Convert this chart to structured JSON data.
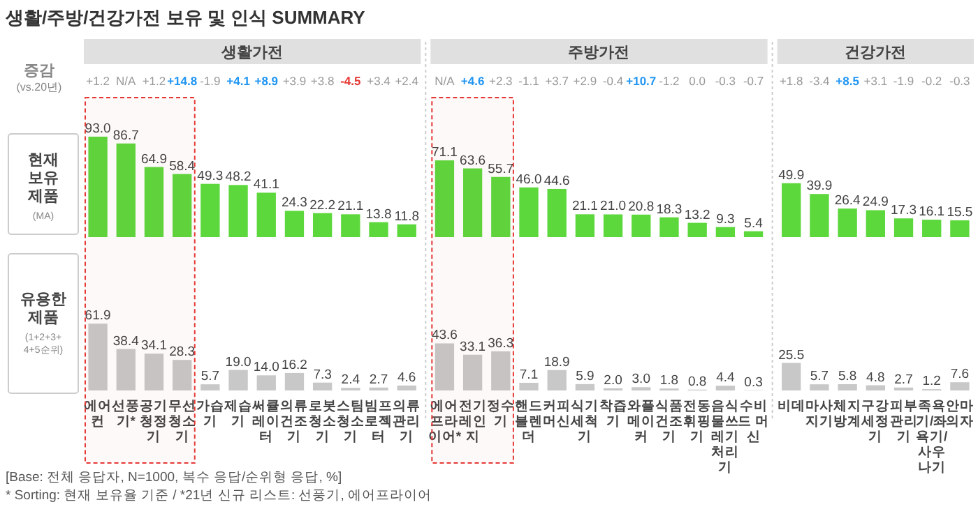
{
  "chart_data": [
    {
      "type": "bar",
      "title": "생활/주방/건강가전 보유 및 인식 SUMMARY",
      "ylabel": "현재\n보유\n제품\n(MA)",
      "color": "#5cd83c",
      "values": [
        93.0,
        86.7,
        64.9,
        58.4,
        49.3,
        48.2,
        41.1,
        24.3,
        22.2,
        21.1,
        13.8,
        11.8,
        71.1,
        63.6,
        55.7,
        46.0,
        44.6,
        21.1,
        21.0,
        20.8,
        18.3,
        13.2,
        9.3,
        5.4,
        49.9,
        39.9,
        26.4,
        24.9,
        17.3,
        16.1,
        15.5
      ],
      "value_labels": [
        "93.0",
        "86.7",
        "64.9",
        "58.4",
        "49.3",
        "48.2",
        "41.1",
        "24.3",
        "22.2",
        "21.1",
        "13.8",
        "11.8",
        "71.1",
        "63.6",
        "55.7",
        "46.0",
        "44.6",
        "21.1",
        "21.0",
        "20.8",
        "18.3",
        "13.2",
        "9.3",
        "5.4",
        "49.9",
        "39.9",
        "26.4",
        "24.9",
        "17.3",
        "16.1",
        "15.5"
      ],
      "annotations": [
        "증감\n(vs.20년)",
        "생활가전",
        "주방가전",
        "건강가전",
        "+1.2",
        "N/A",
        "+1.2",
        "+14.8",
        "-1.9",
        "+4.1",
        "+8.9",
        "+3.9",
        "+3.8",
        "-4.5",
        "+3.4",
        "+2.4",
        "N/A",
        "+4.6",
        "+2.3",
        "-1.1",
        "+3.7",
        "+2.9",
        "-0.4",
        "+10.7",
        "-1.2",
        "0.0",
        "-0.3",
        "-0.7",
        "+1.8",
        "-3.4",
        "+8.5",
        "+3.1",
        "-1.9",
        "-0.2",
        "-0.3"
      ]
    },
    {
      "type": "bar",
      "ylabel": "유용한\n제품\n(1+2+3+\n4+5순위)",
      "color": "#c8c8c8",
      "categories": [
        "에어컨",
        "선풍기*",
        "공기청정기",
        "무선청소기",
        "가습기",
        "제습기",
        "써큘레이터",
        "의류건조기",
        "로봇청소기",
        "스팀청소기",
        "빔프로젝터",
        "의류관리기",
        "에어프라이어*",
        "전기레인지",
        "정수기",
        "핸드블렌더",
        "커피머신",
        "식기세척기",
        "착즙기",
        "와플메이커",
        "식품건조기",
        "전동휘핑기",
        "음식물쓰레기처리기",
        "수비드 머신",
        "비데",
        "마사지기",
        "체지방계",
        "구강세정기",
        "피부관리기",
        "족욕기/좌욕기/사우나기",
        "안마의자"
      ],
      "values": [
        61.9,
        38.4,
        34.1,
        28.3,
        5.7,
        19.0,
        14.0,
        16.2,
        7.3,
        2.4,
        2.7,
        4.6,
        43.6,
        33.1,
        36.3,
        7.1,
        18.9,
        5.9,
        2.0,
        3.0,
        1.8,
        0.8,
        4.4,
        0.3,
        25.5,
        5.7,
        5.8,
        4.8,
        2.7,
        1.2,
        7.6
      ],
      "value_labels": [
        "61.9",
        "38.4",
        "34.1",
        "28.3",
        "5.7",
        "19.0",
        "14.0",
        "16.2",
        "7.3",
        "2.4",
        "2.7",
        "4.6",
        "43.6",
        "33.1",
        "36.3",
        "7.1",
        "18.9",
        "5.9",
        "2.0",
        "3.0",
        "1.8",
        "0.8",
        "4.4",
        "0.3",
        "25.5",
        "5.7",
        "5.8",
        "4.8",
        "2.7",
        "1.2",
        "7.6"
      ],
      "bands": [
        {
          "axis": "x",
          "from": "에어컨",
          "to": "무선청소기",
          "color": "#e53935"
        },
        {
          "axis": "x",
          "from": "에어프라이어*",
          "to": "정수기",
          "color": "#e53935"
        }
      ],
      "annotations": [
        "[Base: 전체 응답자, N=1000, 복수 응답/순위형 응답, %]",
        "* Sorting: 현재 보유율 기준 / *21년 신규 리스트: 선풍기, 에어프라이어"
      ]
    }
  ]
}
